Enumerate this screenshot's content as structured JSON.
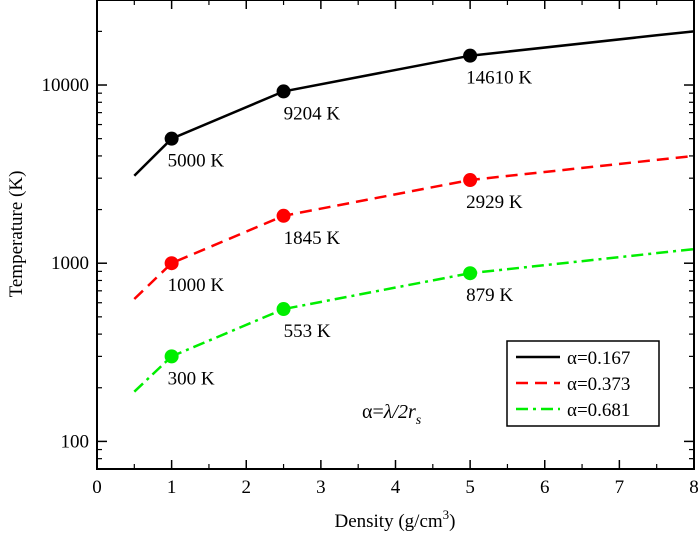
{
  "chart_data": {
    "type": "line",
    "xlabel": "Density (g/cm³)",
    "xlabel_parts": {
      "main": "Density (g/cm",
      "sup": "3",
      "close": ")"
    },
    "ylabel": "Temperature (K)",
    "xlim": [
      0,
      8
    ],
    "ylim": [
      70,
      30000
    ],
    "yscale": "log",
    "x_ticks": [
      0,
      1,
      2,
      3,
      4,
      5,
      6,
      7,
      8
    ],
    "y_ticks": [
      100,
      1000,
      10000
    ],
    "grid": false,
    "legend_position": "bottom-right",
    "annotation": {
      "text": "α=λ/2r_s",
      "alpha": "α=",
      "lambda": "λ/2",
      "r": "r",
      "sub": "s"
    },
    "series": [
      {
        "name": "α=0.167",
        "color": "#000000",
        "dash": "solid",
        "x": [
          0.5,
          1,
          2.5,
          5,
          7.5,
          8
        ],
        "y": [
          3100,
          5000,
          9204,
          14610,
          19000,
          20000
        ],
        "markers": [
          {
            "x": 1,
            "y": 5000,
            "label": "5000 K"
          },
          {
            "x": 2.5,
            "y": 9204,
            "label": "9204 K"
          },
          {
            "x": 5,
            "y": 14610,
            "label": "14610 K"
          }
        ]
      },
      {
        "name": "α=0.373",
        "color": "#ff0000",
        "dash": "dashed",
        "x": [
          0.5,
          1,
          2.5,
          5,
          8
        ],
        "y": [
          630,
          1000,
          1845,
          2929,
          4000
        ],
        "markers": [
          {
            "x": 1,
            "y": 1000,
            "label": "1000 K"
          },
          {
            "x": 2.5,
            "y": 1845,
            "label": "1845 K"
          },
          {
            "x": 5,
            "y": 2929,
            "label": "2929 K"
          }
        ]
      },
      {
        "name": "α=0.681",
        "color": "#00ee00",
        "dash": "dashdot",
        "x": [
          0.5,
          1,
          2.5,
          5,
          8
        ],
        "y": [
          190,
          300,
          553,
          879,
          1200
        ],
        "markers": [
          {
            "x": 1,
            "y": 300,
            "label": "300 K"
          },
          {
            "x": 2.5,
            "y": 553,
            "label": "553 K"
          },
          {
            "x": 5,
            "y": 879,
            "label": "879 K"
          }
        ]
      }
    ]
  }
}
